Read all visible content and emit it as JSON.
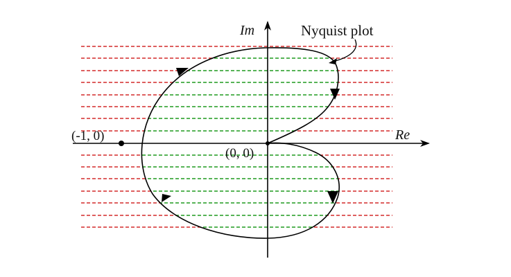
{
  "diagram": {
    "type": "nyquist-plot",
    "labels": {
      "imaginary_axis": "Im",
      "real_axis": "Re",
      "critical_point": "(-1, 0)",
      "origin": "(0, 0)",
      "curve_name": "Nyquist plot"
    },
    "colors": {
      "curve": "#000000",
      "axes": "#000000",
      "outside_hatch": "#d42a2a",
      "inside_hatch": "#1e9a1e",
      "background": "#ffffff"
    },
    "direction_arrows": "upper-right arrow points down, lower-right arrow points down, lower-left arrow points up, upper-left arrow points up-right"
  }
}
